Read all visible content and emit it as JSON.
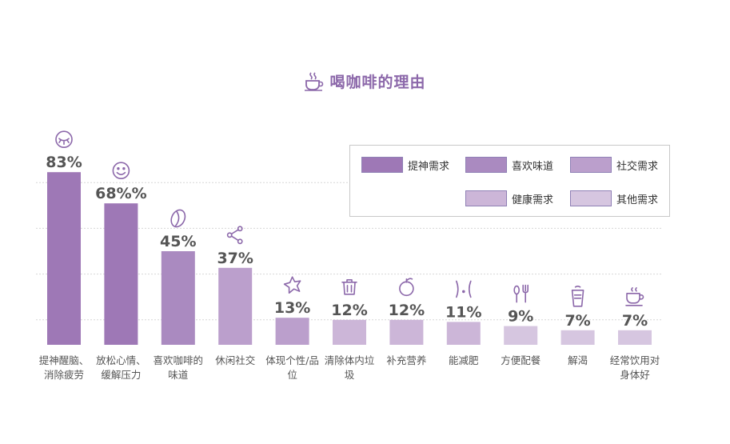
{
  "title": "喝咖啡的理由",
  "colors": {
    "title": "#8c68aa",
    "grid": "#d7d7d7",
    "value_label": "#555555",
    "axis_label": "#555555",
    "icon": "#8c68aa"
  },
  "legend": [
    {
      "label": "提神需求",
      "color": "#9e78b6"
    },
    {
      "label": "喜欢味道",
      "color": "#aa8ac0"
    },
    {
      "label": "社交需求",
      "color": "#bb9fcc"
    },
    {
      "label": "健康需求",
      "color": "#ccb6d8"
    },
    {
      "label": "其他需求",
      "color": "#d6c6e0"
    }
  ],
  "chart_data": {
    "type": "bar",
    "title": "喝咖啡的理由",
    "xlabel": "",
    "ylabel": "",
    "ylim": [
      0,
      100
    ],
    "grid": true,
    "legend_position": "top-right",
    "categories": [
      [
        "提神醒脑、",
        "消除疲劳"
      ],
      [
        "放松心情、",
        "缓解压力"
      ],
      [
        "喜欢咖啡的",
        "味道"
      ],
      [
        "休闲社交"
      ],
      [
        "体现个性/品",
        "位"
      ],
      [
        "清除体内垃",
        "圾"
      ],
      [
        "补充营养"
      ],
      [
        "能减肥"
      ],
      [
        "方便配餐"
      ],
      [
        "解渴"
      ],
      [
        "经常饮用对",
        "身体好"
      ]
    ],
    "values": [
      83,
      68,
      45,
      37,
      13,
      12,
      12,
      11,
      9,
      7,
      7
    ],
    "value_labels": [
      "83%",
      "68%%",
      "45%",
      "37%",
      "13%",
      "12%",
      "12%",
      "11%",
      "9%",
      "7%",
      "7%"
    ],
    "bar_colors": [
      "#9e78b6",
      "#9e78b6",
      "#aa8ac0",
      "#bb9fcc",
      "#bb9fcc",
      "#ccb6d8",
      "#ccb6d8",
      "#ccb6d8",
      "#d6c6e0",
      "#d6c6e0",
      "#d6c6e0"
    ],
    "icons": [
      "sleepy-eye-icon",
      "smile-icon",
      "coffee-bean-icon",
      "share-icon",
      "star-badge-icon",
      "trash-icon",
      "fruit-icon",
      "waist-icon",
      "cutlery-icon",
      "drink-cup-icon",
      "coffee-cup-icon"
    ]
  }
}
